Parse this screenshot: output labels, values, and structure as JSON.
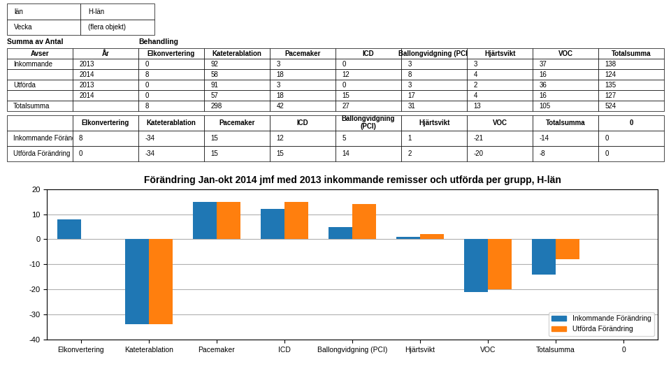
{
  "chart_data": [
    {
      "type": "table",
      "rows": [
        [
          "län",
          "H-län"
        ],
        [
          "Vecka",
          "(flera objekt)"
        ]
      ]
    },
    {
      "type": "table",
      "title": "Summa av Antal",
      "subtitle": "Behandling",
      "columns": [
        "Avser",
        "År",
        "Elkonvertering",
        "Kateterablation",
        "Pacemaker",
        "ICD",
        "Ballongvidgning (PCI)",
        "Hjärtsvikt",
        "VOC",
        "Totalsumma"
      ],
      "rows": [
        [
          "Inkommande",
          "2013",
          "0",
          "92",
          "3",
          "0",
          "3",
          "3",
          "37",
          "138"
        ],
        [
          "",
          "2014",
          "8",
          "58",
          "18",
          "12",
          "8",
          "4",
          "16",
          "124"
        ],
        [
          "Utförda",
          "2013",
          "0",
          "91",
          "3",
          "0",
          "3",
          "2",
          "36",
          "135"
        ],
        [
          "",
          "2014",
          "0",
          "57",
          "18",
          "15",
          "17",
          "4",
          "16",
          "127"
        ],
        [
          "Totalsumma",
          "",
          "8",
          "298",
          "42",
          "27",
          "31",
          "13",
          "105",
          "524"
        ]
      ]
    },
    {
      "type": "table",
      "columns": [
        "",
        "Elkonvertering",
        "Kateterablation",
        "Pacemaker",
        "ICD",
        "Ballongvidgning\n(PCI)",
        "Hjärtsvikt",
        "VOC",
        "Totalsumma",
        "0"
      ],
      "rows": [
        [
          "Inkommande Förändring",
          "8",
          "-34",
          "15",
          "12",
          "5",
          "1",
          "-21",
          "-14",
          "0"
        ],
        [
          "Utförda Förändring",
          "0",
          "-34",
          "15",
          "15",
          "14",
          "2",
          "-20",
          "-8",
          "0"
        ]
      ]
    },
    {
      "type": "bar",
      "title": "Förändring Jan-okt 2014 jmf med 2013 inkommande remisser och utförda per grupp, H-län",
      "categories": [
        "Elkonvertering",
        "Kateterablation",
        "Pacemaker",
        "ICD",
        "Ballongvidgning (PCI)",
        "Hjärtsvikt",
        "VOC",
        "Totalsumma",
        "0"
      ],
      "series": [
        {
          "name": "Inkommande Förändring",
          "values": [
            8,
            -34,
            15,
            12,
            5,
            1,
            -21,
            -14,
            0
          ]
        },
        {
          "name": "Utförda Förändring",
          "values": [
            0,
            -34,
            15,
            15,
            14,
            2,
            -20,
            -8,
            0
          ]
        }
      ],
      "ylim": [
        -40,
        20
      ],
      "yticks": [
        -40,
        -30,
        -20,
        -10,
        0,
        10,
        20
      ],
      "grid": true,
      "legend": "lower right"
    }
  ]
}
